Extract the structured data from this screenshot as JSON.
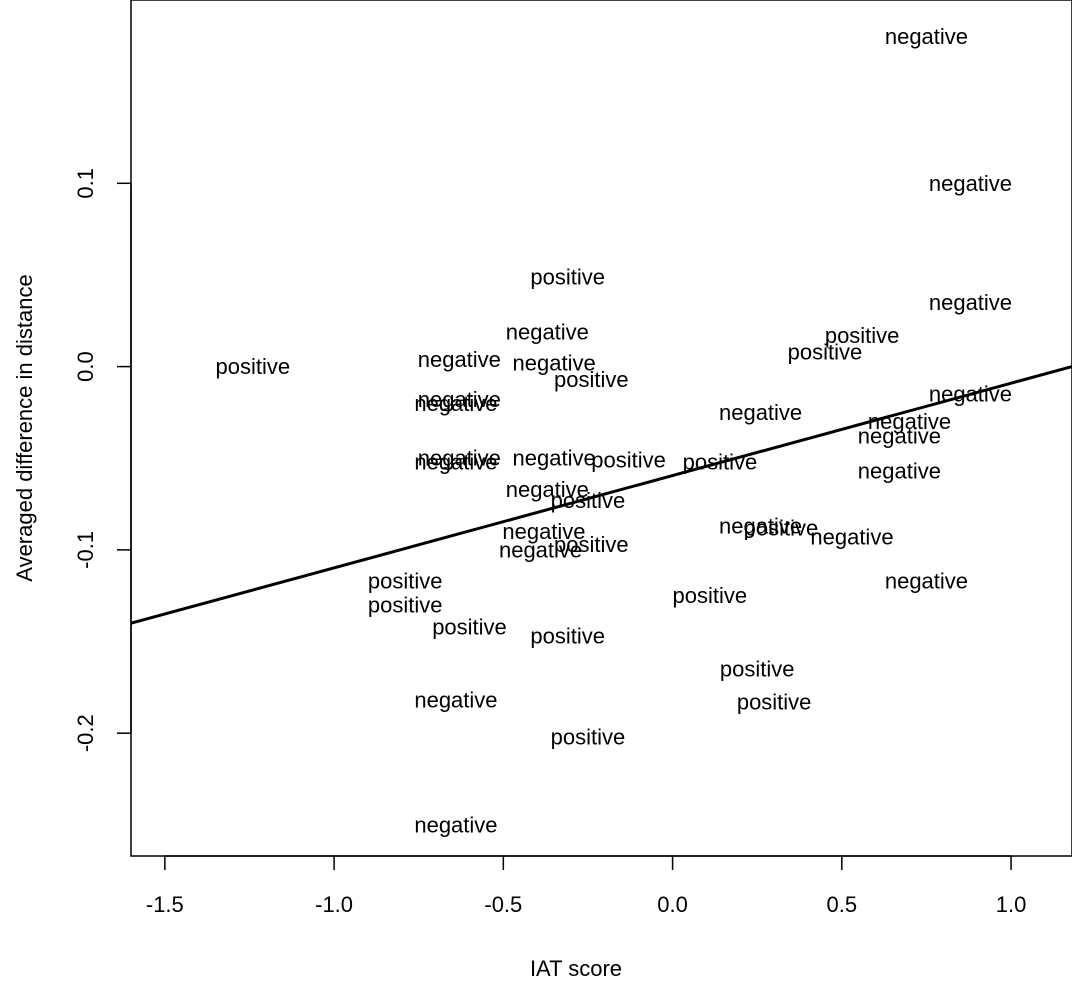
{
  "chart_data": {
    "type": "scatter",
    "title": "",
    "xlabel": "IAT score",
    "ylabel": "Averaged difference in distance",
    "xlim": [
      -1.6,
      1.18
    ],
    "ylim": [
      -0.267,
      0.2
    ],
    "x_ticks": [
      -1.5,
      -1.0,
      -0.5,
      0.0,
      0.5,
      1.0
    ],
    "x_tick_labels": [
      "-1.5",
      "-1.0",
      "-0.5",
      "0.0",
      "0.5",
      "1.0"
    ],
    "y_ticks": [
      -0.2,
      -0.1,
      0.0,
      0.1
    ],
    "y_tick_labels": [
      "-0.2",
      "-0.1",
      "0.0",
      "0.1"
    ],
    "grid": false,
    "legend": "none",
    "points": [
      {
        "x": 0.75,
        "y": 0.18,
        "label": "negative"
      },
      {
        "x": 0.88,
        "y": 0.1,
        "label": "negative"
      },
      {
        "x": 0.88,
        "y": 0.035,
        "label": "negative"
      },
      {
        "x": 0.88,
        "y": -0.015,
        "label": "negative"
      },
      {
        "x": 0.7,
        "y": -0.03,
        "label": "negative"
      },
      {
        "x": 0.67,
        "y": -0.038,
        "label": "negative"
      },
      {
        "x": 0.67,
        "y": -0.057,
        "label": "negative"
      },
      {
        "x": 0.75,
        "y": -0.117,
        "label": "negative"
      },
      {
        "x": 0.53,
        "y": -0.093,
        "label": "negative"
      },
      {
        "x": 0.26,
        "y": -0.087,
        "label": "negative"
      },
      {
        "x": 0.32,
        "y": -0.088,
        "label": "positive"
      },
      {
        "x": 0.26,
        "y": -0.025,
        "label": "negative"
      },
      {
        "x": 0.56,
        "y": 0.017,
        "label": "positive"
      },
      {
        "x": 0.45,
        "y": 0.008,
        "label": "positive"
      },
      {
        "x": 0.14,
        "y": -0.052,
        "label": "positive"
      },
      {
        "x": 0.25,
        "y": -0.165,
        "label": "positive"
      },
      {
        "x": 0.3,
        "y": -0.183,
        "label": "positive"
      },
      {
        "x": 0.11,
        "y": -0.125,
        "label": "positive"
      },
      {
        "x": -0.13,
        "y": -0.051,
        "label": "positive"
      },
      {
        "x": -0.31,
        "y": 0.049,
        "label": "positive"
      },
      {
        "x": -0.24,
        "y": -0.007,
        "label": "positive"
      },
      {
        "x": -0.25,
        "y": -0.073,
        "label": "positive"
      },
      {
        "x": -0.24,
        "y": -0.097,
        "label": "positive"
      },
      {
        "x": -0.31,
        "y": -0.147,
        "label": "positive"
      },
      {
        "x": -0.25,
        "y": -0.202,
        "label": "positive"
      },
      {
        "x": -0.37,
        "y": 0.019,
        "label": "negative"
      },
      {
        "x": -0.35,
        "y": 0.002,
        "label": "negative"
      },
      {
        "x": -0.37,
        "y": -0.067,
        "label": "negative"
      },
      {
        "x": -0.38,
        "y": -0.09,
        "label": "negative"
      },
      {
        "x": -0.39,
        "y": -0.1,
        "label": "negative"
      },
      {
        "x": -0.35,
        "y": -0.05,
        "label": "negative"
      },
      {
        "x": -0.63,
        "y": 0.004,
        "label": "negative"
      },
      {
        "x": -0.63,
        "y": -0.018,
        "label": "negative"
      },
      {
        "x": -0.64,
        "y": -0.02,
        "label": "negative"
      },
      {
        "x": -0.63,
        "y": -0.05,
        "label": "negative"
      },
      {
        "x": -0.64,
        "y": -0.052,
        "label": "negative"
      },
      {
        "x": -0.6,
        "y": -0.142,
        "label": "positive"
      },
      {
        "x": -0.64,
        "y": -0.182,
        "label": "negative"
      },
      {
        "x": -0.64,
        "y": -0.25,
        "label": "negative"
      },
      {
        "x": -0.79,
        "y": -0.117,
        "label": "positive"
      },
      {
        "x": -0.79,
        "y": -0.13,
        "label": "positive"
      },
      {
        "x": -1.24,
        "y": 0.0,
        "label": "positive"
      }
    ],
    "regression_line": {
      "x": [
        -1.6,
        1.18
      ],
      "y": [
        -0.14,
        0.0
      ]
    }
  }
}
